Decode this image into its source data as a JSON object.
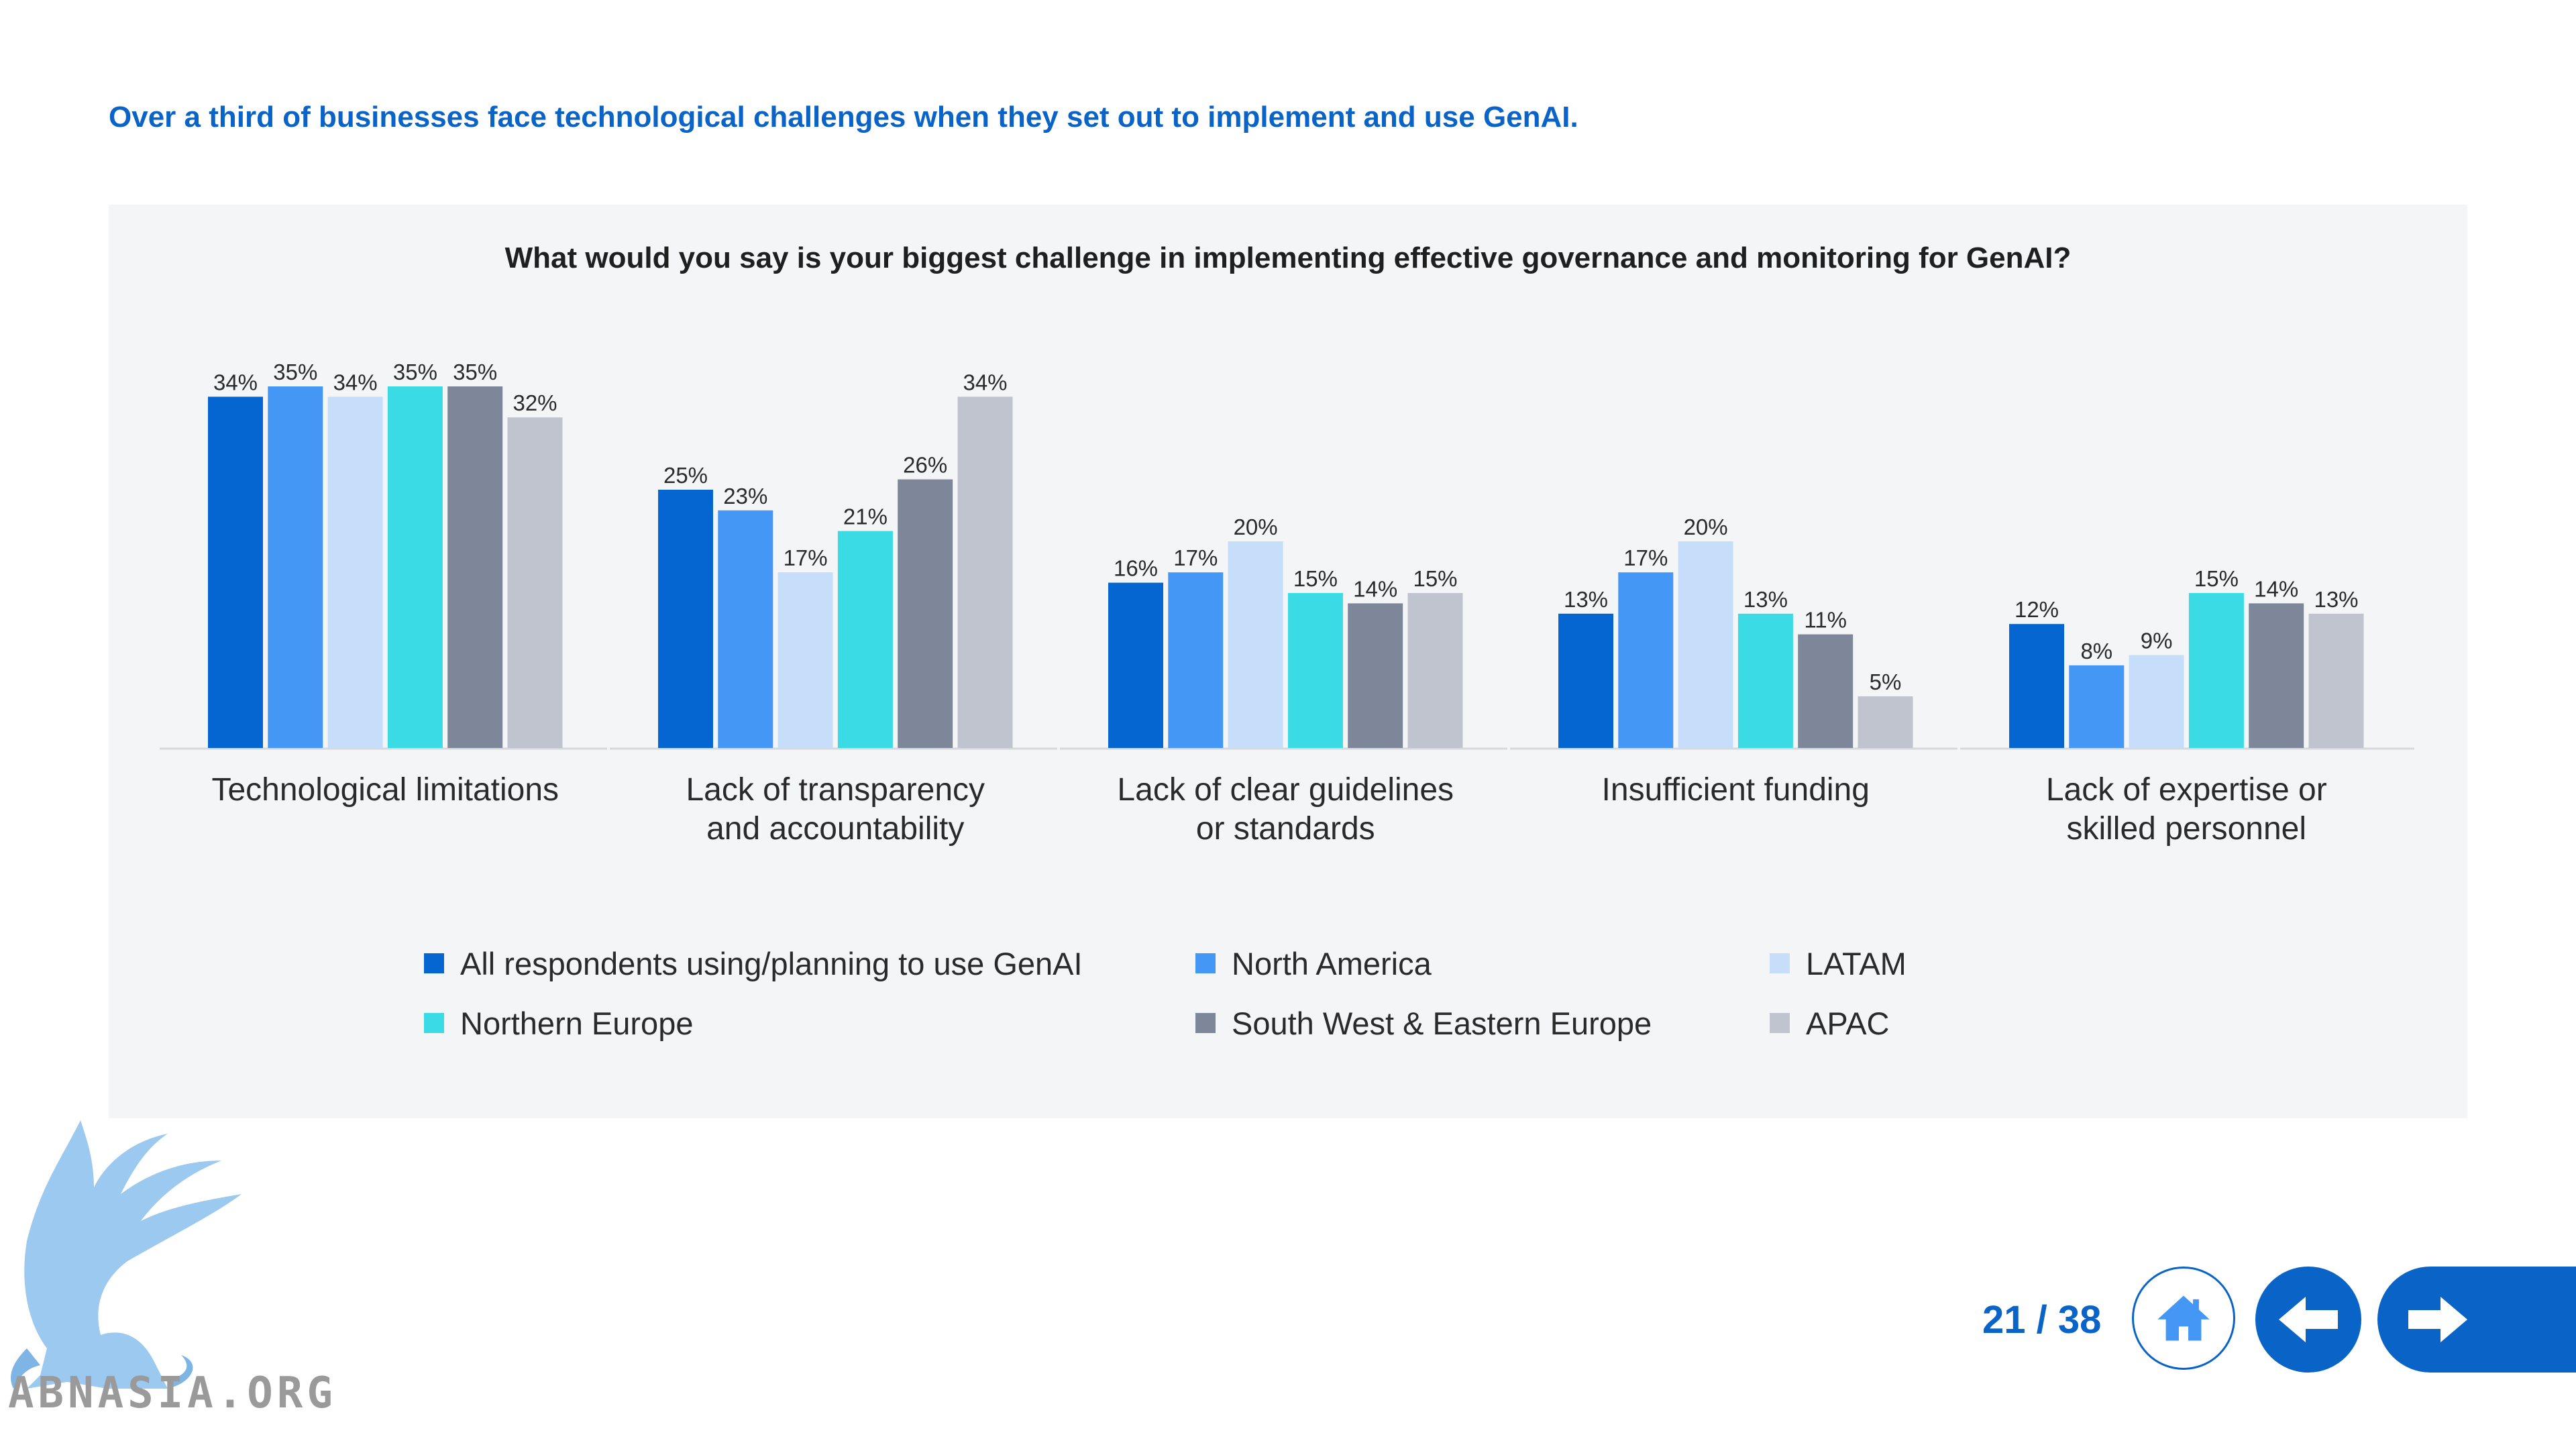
{
  "headline": "Over a third of businesses face technological challenges when they set out to implement and use GenAI.",
  "chart_data": {
    "type": "bar",
    "title": "What would you say is your biggest challenge in implementing effective governance and monitoring for GenAI?",
    "xlabel": "",
    "ylabel": "",
    "ylim": [
      0,
      40
    ],
    "grid": false,
    "legend_position": "bottom",
    "categories": [
      [
        "Technological limitations"
      ],
      [
        "Lack of transparency",
        "and accountability"
      ],
      [
        "Lack of clear guidelines",
        "or standards"
      ],
      [
        "Insufficient funding"
      ],
      [
        "Lack of expertise or",
        "skilled personnel"
      ]
    ],
    "series": [
      {
        "name": "All respondents using/planning to use GenAI",
        "color": "#0565d1",
        "values": [
          34,
          25,
          16,
          13,
          12
        ]
      },
      {
        "name": "North America",
        "color": "#4497f5",
        "values": [
          35,
          23,
          17,
          17,
          8
        ]
      },
      {
        "name": "LATAM",
        "color": "#c7defa",
        "values": [
          34,
          17,
          20,
          20,
          9
        ]
      },
      {
        "name": "Northern Europe",
        "color": "#3bdbe5",
        "values": [
          35,
          21,
          15,
          13,
          15
        ]
      },
      {
        "name": "South West & Eastern Europe",
        "color": "#7d8799",
        "values": [
          35,
          26,
          14,
          11,
          14
        ]
      },
      {
        "name": "APAC",
        "color": "#c0c4cf",
        "values": [
          32,
          34,
          15,
          5,
          13
        ]
      }
    ],
    "value_suffix": "%"
  },
  "pagination": {
    "label": "21 / 38"
  },
  "nav": {
    "home_icon": "home-icon",
    "prev_icon": "arrow-left-icon",
    "next_icon": "arrow-right-icon"
  },
  "logo": {
    "text": "ABNASIA.ORG"
  }
}
